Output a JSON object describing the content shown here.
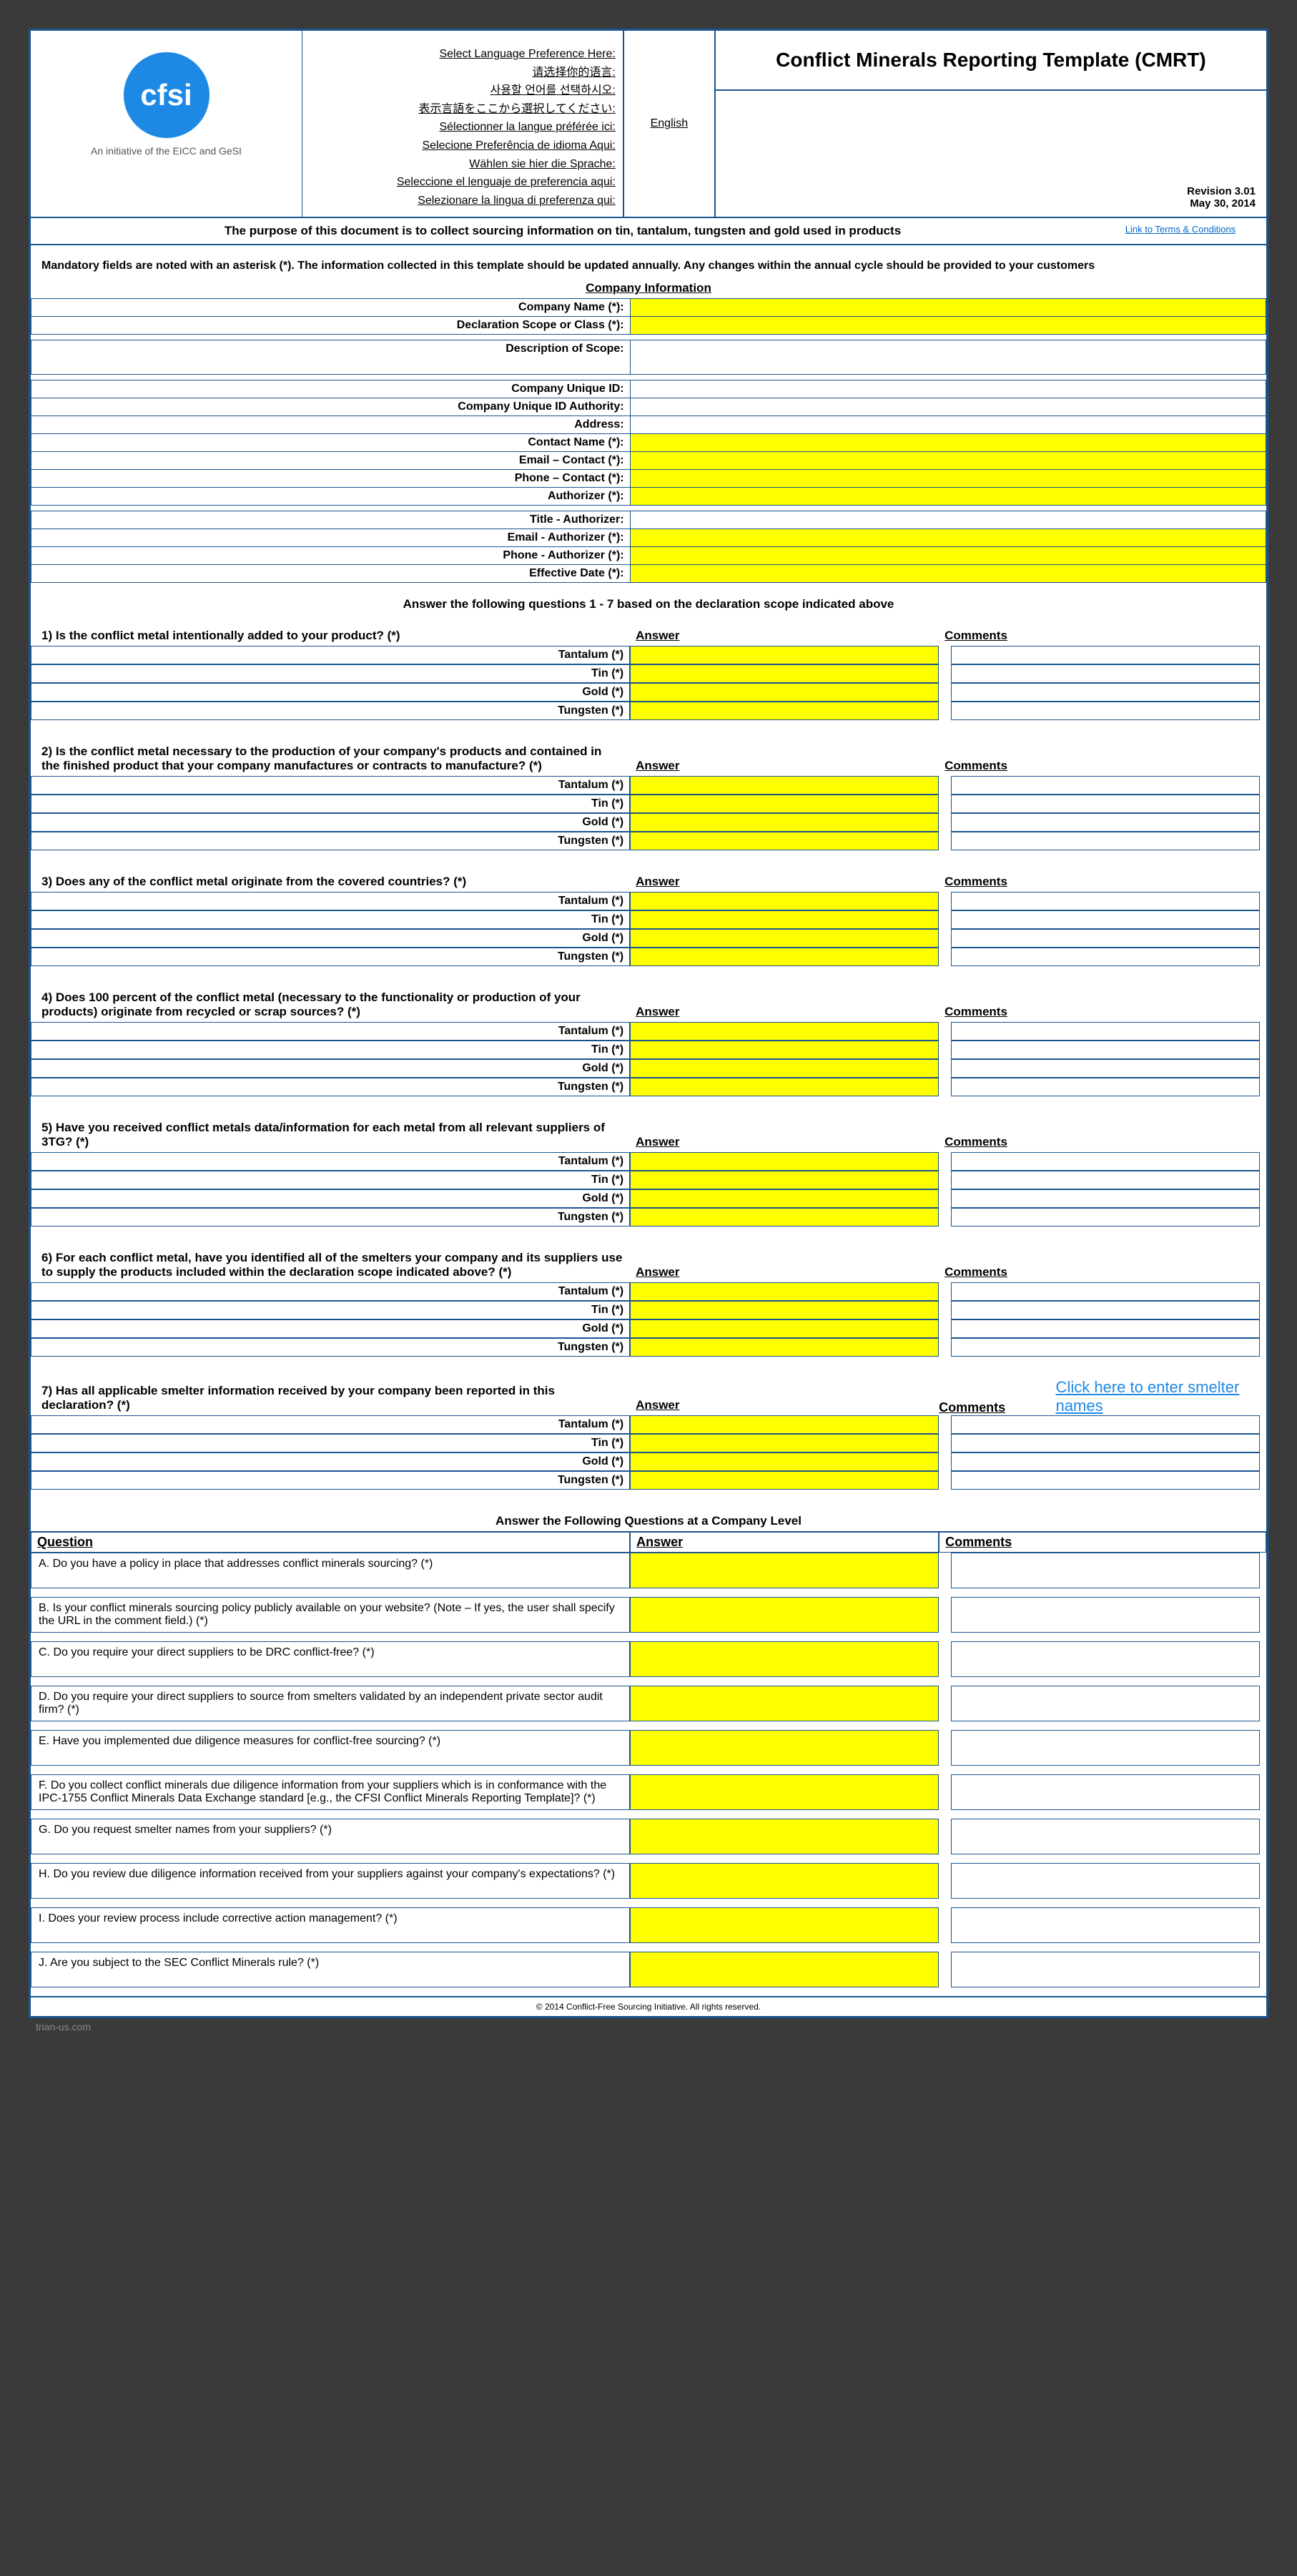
{
  "logo": {
    "text": "cfsi",
    "subtitle": "An initiative of the EICC and GeSI"
  },
  "languages": {
    "header": "Select Language Preference Here:",
    "l1": "请选择你的语言:",
    "l2": "사용할 언어를 선택하시오:",
    "l3": "表示言語をここから選択してください:",
    "l4": "Sélectionner la langue préférée ici:",
    "l5": "Selecione Preferência de idioma Aqui:",
    "l6": "Wählen sie hier die Sprache:",
    "l7": "Seleccione el lenguaje de preferencia aqui:",
    "l8": "Selezionare la lingua di preferenza qui:",
    "english": "English"
  },
  "title": "Conflict Minerals Reporting Template (CMRT)",
  "revision": {
    "rev": "Revision 3.01",
    "date": "May 30, 2014"
  },
  "purpose": "The purpose of this document is to collect sourcing information on tin, tantalum, tungsten and gold used in products",
  "terms_link": "Link to Terms & Conditions",
  "mandatory": "Mandatory fields are noted with an asterisk (*). The information collected in this template should be updated annually. Any changes within the annual cycle should be provided to your customers",
  "company_info_title": "Company Information",
  "fields": {
    "f1": "Company Name (*):",
    "f2": "Declaration Scope or Class (*):",
    "f3": "Description of Scope:",
    "f4": "Company Unique ID:",
    "f5": "Company Unique ID Authority:",
    "f6": "Address:",
    "f7": "Contact Name (*):",
    "f8": "Email – Contact (*):",
    "f9": "Phone – Contact (*):",
    "f10": "Authorizer (*):",
    "f11": "Title - Authorizer:",
    "f12": "Email - Authorizer (*):",
    "f13": "Phone - Authorizer (*):",
    "f14": "Effective Date (*):"
  },
  "instruction1": "Answer the following questions 1 - 7 based on the declaration scope indicated above",
  "headers": {
    "answer": "Answer",
    "comments": "Comments",
    "question": "Question"
  },
  "metals": {
    "tantalum": "Tantalum  (*)",
    "tin": "Tin  (*)",
    "gold": "Gold  (*)",
    "tungsten": "Tungsten  (*)"
  },
  "questions": {
    "q1": "1) Is the conflict metal intentionally added to your product? (*)",
    "q2": "2) Is the conflict metal necessary to the production of your company's products and contained in the finished product that your company manufactures or contracts to manufacture? (*)",
    "q3": "3) Does any of the conflict metal originate from the covered countries? (*)",
    "q4": "4) Does 100 percent of the conflict metal (necessary to the functionality or production of your products) originate from recycled or scrap sources? (*)",
    "q5": "5) Have you received conflict metals data/information for each metal from all relevant suppliers of 3TG? (*)",
    "q6": "6) For each conflict metal, have you identified all of the smelters your company and its suppliers use to supply the products included within the declaration scope indicated above? (*)",
    "q7": "7) Has all applicable smelter information received by your company been reported in this declaration? (*)"
  },
  "smelter_link": "Click here to enter smelter names",
  "instruction2": "Answer the Following Questions at a Company Level",
  "company_questions": {
    "a": "A. Do you have a policy in place that addresses conflict minerals sourcing? (*)",
    "b": "B. Is your conflict minerals sourcing policy publicly available on your website? (Note – If yes, the user shall specify the URL in the comment field.) (*)",
    "c": "C. Do you require your direct suppliers to be DRC conflict-free? (*)",
    "d": "D. Do you require your direct suppliers to source from smelters validated by an independent private sector audit firm? (*)",
    "e": "E. Have you implemented due diligence measures for conflict-free sourcing? (*)",
    "f": "F. Do you collect conflict minerals due diligence information from your suppliers which is in conformance with the IPC-1755 Conflict Minerals Data Exchange standard [e.g., the CFSI Conflict Minerals Reporting Template]? (*)",
    "g": "G. Do you request smelter names from your suppliers? (*)",
    "h": "H. Do you review due diligence information received from your suppliers against your company's expectations? (*)",
    "i": "I. Does your review process include corrective action management? (*)",
    "j": "J. Are you subject to the SEC Conflict Minerals rule? (*)"
  },
  "footer": "© 2014 Conflict-Free Sourcing Initiative. All rights reserved.",
  "watermark": "trian-us.com"
}
